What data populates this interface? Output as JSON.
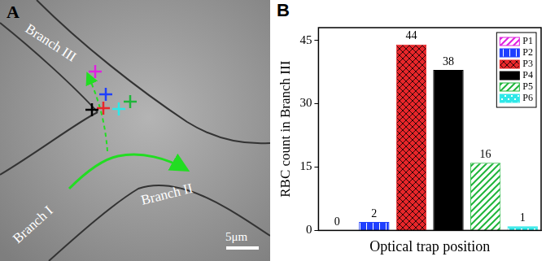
{
  "panel_labels": [
    "A",
    "B"
  ],
  "panel_a": {
    "branches": [
      "Branch I",
      "Branch II",
      "Branch III"
    ],
    "scale_bar": "5μm"
  },
  "chart_data": {
    "type": "bar",
    "categories": [
      "P1",
      "P2",
      "P3",
      "P4",
      "P5",
      "P6"
    ],
    "values": [
      0,
      2,
      44,
      38,
      16,
      1
    ],
    "colors": [
      "#e020e0",
      "#1f3fff",
      "#e8262a",
      "#000000",
      "#1fb53a",
      "#2ee8e8"
    ],
    "x_label": "Optical trap position",
    "y_label": "RBC count in Branch III",
    "ylim": [
      0,
      48
    ],
    "yticks": [
      0,
      15,
      30,
      45
    ],
    "grid": false,
    "legend": "upper right",
    "data_labels": true,
    "tick_labels": "y"
  }
}
